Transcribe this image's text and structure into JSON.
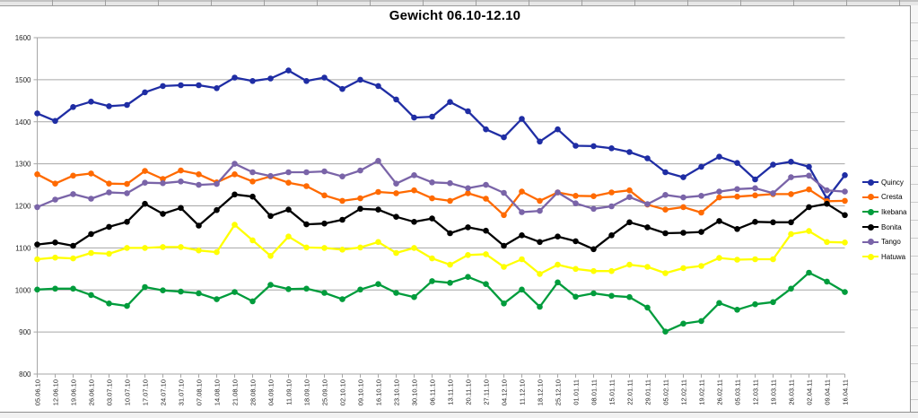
{
  "colors": {
    "grid": "#a6a6a6",
    "text": "#262626"
  },
  "chart_data": {
    "type": "line",
    "title": "Gewicht 06.10-12.10",
    "xlabel": "",
    "ylabel": "",
    "ylim": [
      800,
      1600
    ],
    "yticks": [
      800,
      900,
      1000,
      1100,
      1200,
      1300,
      1400,
      1500,
      1600
    ],
    "grid": true,
    "legend_position": "right",
    "categories": [
      "05.06.10",
      "12.06.10",
      "19.06.10",
      "26.06.10",
      "03.07.10",
      "10.07.10",
      "17.07.10",
      "24.07.10",
      "31.07.10",
      "07.08.10",
      "14.08.10",
      "21.08.10",
      "28.08.10",
      "04.09.10",
      "11.09.10",
      "18.09.10",
      "25.09.10",
      "02.10.10",
      "09.10.10",
      "16.10.10",
      "23.10.10",
      "30.10.10",
      "06.11.10",
      "13.11.10",
      "20.11.10",
      "27.11.10",
      "04.12.10",
      "11.12.10",
      "18.12.10",
      "25.12.10",
      "01.01.11",
      "08.01.11",
      "15.01.11",
      "22.01.11",
      "29.01.11",
      "05.02.11",
      "12.02.11",
      "19.02.11",
      "26.02.11",
      "05.03.11",
      "12.03.11",
      "19.03.11",
      "26.03.11",
      "02.04.11",
      "09.04.11",
      "16.04.11"
    ],
    "series": [
      {
        "name": "Quincy",
        "color": "#1f2da4",
        "values": [
          1420,
          1402,
          1435,
          1448,
          1437,
          1440,
          1470,
          1485,
          1487,
          1487,
          1480,
          1505,
          1497,
          1503,
          1522,
          1497,
          1505,
          1478,
          1500,
          1485,
          1453,
          1410,
          1412,
          1447,
          1425,
          1382,
          1363,
          1407,
          1353,
          1382,
          1343,
          1342,
          1337,
          1328,
          1313,
          1280,
          1268,
          1293,
          1317,
          1302,
          1263,
          1298,
          1305,
          1293,
          1217,
          1273
        ]
      },
      {
        "name": "Cresta",
        "color": "#ff6a00",
        "values": [
          1275,
          1253,
          1272,
          1277,
          1253,
          1252,
          1283,
          1264,
          1284,
          1275,
          1256,
          1275,
          1258,
          1270,
          1255,
          1247,
          1225,
          1212,
          1218,
          1233,
          1230,
          1237,
          1218,
          1212,
          1230,
          1217,
          1178,
          1234,
          1212,
          1232,
          1224,
          1223,
          1232,
          1237,
          1203,
          1191,
          1197,
          1184,
          1220,
          1222,
          1225,
          1228,
          1228,
          1239,
          1211,
          1212
        ]
      },
      {
        "name": "Ikebana",
        "color": "#009c3c",
        "values": [
          1001,
          1003,
          1003,
          988,
          968,
          962,
          1007,
          999,
          996,
          992,
          978,
          995,
          973,
          1012,
          1002,
          1003,
          993,
          978,
          1001,
          1014,
          993,
          983,
          1021,
          1017,
          1031,
          1014,
          968,
          1001,
          960,
          1018,
          984,
          992,
          986,
          983,
          958,
          901,
          920,
          926,
          969,
          953,
          966,
          971,
          1003,
          1041,
          1020,
          995
        ]
      },
      {
        "name": "Bonita",
        "color": "#000000",
        "values": [
          1108,
          1113,
          1105,
          1133,
          1150,
          1162,
          1205,
          1181,
          1195,
          1153,
          1190,
          1227,
          1222,
          1176,
          1191,
          1156,
          1158,
          1167,
          1193,
          1191,
          1174,
          1162,
          1170,
          1135,
          1149,
          1141,
          1105,
          1130,
          1114,
          1127,
          1116,
          1097,
          1130,
          1161,
          1149,
          1135,
          1136,
          1138,
          1164,
          1145,
          1162,
          1161,
          1161,
          1197,
          1205,
          1178
        ]
      },
      {
        "name": "Tango",
        "color": "#7a64a8",
        "values": [
          1197,
          1215,
          1228,
          1217,
          1232,
          1230,
          1255,
          1254,
          1258,
          1250,
          1252,
          1300,
          1280,
          1271,
          1280,
          1280,
          1282,
          1270,
          1284,
          1307,
          1253,
          1273,
          1256,
          1254,
          1242,
          1250,
          1231,
          1185,
          1188,
          1232,
          1206,
          1193,
          1199,
          1221,
          1204,
          1226,
          1220,
          1224,
          1234,
          1240,
          1242,
          1230,
          1268,
          1272,
          1237,
          1234
        ]
      },
      {
        "name": "Hatuwa",
        "color": "#ffff00",
        "values": [
          1073,
          1077,
          1075,
          1088,
          1086,
          1100,
          1100,
          1102,
          1102,
          1094,
          1090,
          1155,
          1118,
          1081,
          1127,
          1101,
          1100,
          1096,
          1101,
          1114,
          1088,
          1100,
          1075,
          1060,
          1083,
          1085,
          1055,
          1073,
          1038,
          1060,
          1050,
          1045,
          1045,
          1060,
          1055,
          1040,
          1052,
          1057,
          1076,
          1072,
          1073,
          1073,
          1133,
          1140,
          1114,
          1113
        ]
      }
    ]
  }
}
